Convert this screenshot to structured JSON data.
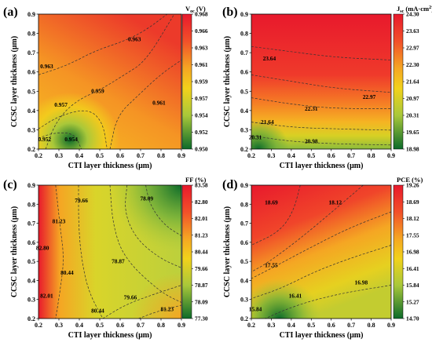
{
  "chart_data": [
    {
      "type": "heatmap",
      "panel_label": "(a)",
      "xlabel": "CTI layer thickness (μm)",
      "ylabel": "CCSC layer thickness (μm)",
      "x_ticks": [
        "0.2",
        "0.3",
        "0.4",
        "0.5",
        "0.6",
        "0.7",
        "0.8",
        "0.9"
      ],
      "y_ticks": [
        "0.2",
        "0.3",
        "0.4",
        "0.5",
        "0.6",
        "0.7",
        "0.8",
        "0.9"
      ],
      "xlim": [
        0.2,
        0.9
      ],
      "ylim": [
        0.2,
        0.9
      ],
      "colorbar": {
        "title": "V<sub>oc</sub> (V)",
        "title_main": "V",
        "title_sub": "oc",
        "title_rest": " (V)",
        "ticks": [
          "0.968",
          "0.966",
          "0.963",
          "0.961",
          "0.959",
          "0.957",
          "0.954",
          "0.952",
          "0.950"
        ],
        "range": [
          0.95,
          0.968
        ]
      },
      "contour_labels": [
        {
          "text": "0.963",
          "x": 0.67,
          "y": 0.76
        },
        {
          "text": "0.963",
          "x": 0.24,
          "y": 0.62
        },
        {
          "text": "0.959",
          "x": 0.49,
          "y": 0.49
        },
        {
          "text": "0.957",
          "x": 0.31,
          "y": 0.42
        },
        {
          "text": "0.961",
          "x": 0.79,
          "y": 0.43
        },
        {
          "text": "0.952",
          "x": 0.23,
          "y": 0.24
        },
        {
          "text": "0.954",
          "x": 0.36,
          "y": 0.24
        }
      ]
    },
    {
      "type": "heatmap",
      "panel_label": "(b)",
      "xlabel": "CTI layer thickness (μm)",
      "ylabel": "CCSC layer thickness (μm)",
      "x_ticks": [
        "0.2",
        "0.3",
        "0.4",
        "0.5",
        "0.6",
        "0.7",
        "0.8",
        "0.9"
      ],
      "y_ticks": [
        "0.2",
        "0.3",
        "0.4",
        "0.5",
        "0.6",
        "0.7",
        "0.8",
        "0.9"
      ],
      "xlim": [
        0.2,
        0.9
      ],
      "ylim": [
        0.2,
        0.9
      ],
      "colorbar": {
        "title_main": "J",
        "title_sub": "sc",
        "title_rest": " (mA·cm",
        "title_sup": "2",
        "title_end": ")",
        "ticks": [
          "24.30",
          "23.63",
          "22.97",
          "22.30",
          "21.64",
          "20.97",
          "20.31",
          "19.65",
          "18.98"
        ],
        "range": [
          18.98,
          24.3
        ]
      },
      "contour_labels": [
        {
          "text": "23.64",
          "x": 0.29,
          "y": 0.66
        },
        {
          "text": "22.97",
          "x": 0.79,
          "y": 0.46
        },
        {
          "text": "22.31",
          "x": 0.5,
          "y": 0.4
        },
        {
          "text": "21.64",
          "x": 0.28,
          "y": 0.33
        },
        {
          "text": "20.31",
          "x": 0.22,
          "y": 0.25
        },
        {
          "text": "20.98",
          "x": 0.5,
          "y": 0.23
        }
      ]
    },
    {
      "type": "heatmap",
      "panel_label": "(c)",
      "xlabel": "CTI layer thickness (μm)",
      "ylabel": "CCSC layer thickness (μm)",
      "x_ticks": [
        "0.2",
        "0.3",
        "0.4",
        "0.5",
        "0.6",
        "0.7",
        "0.8",
        "0.9"
      ],
      "y_ticks": [
        "0.2",
        "0.3",
        "0.4",
        "0.5",
        "0.6",
        "0.7",
        "0.8",
        "0.9"
      ],
      "xlim": [
        0.2,
        0.9
      ],
      "ylim": [
        0.2,
        0.9
      ],
      "colorbar": {
        "title_main": "FF (%)",
        "ticks": [
          "83.58",
          "82.80",
          "82.01",
          "81.23",
          "80.44",
          "79.66",
          "78.87",
          "78.09",
          "77.30"
        ],
        "range": [
          77.3,
          83.58
        ]
      },
      "contour_labels": [
        {
          "text": "79.66",
          "x": 0.41,
          "y": 0.81
        },
        {
          "text": "78.09",
          "x": 0.73,
          "y": 0.82
        },
        {
          "text": "81.23",
          "x": 0.3,
          "y": 0.7
        },
        {
          "text": "82.80",
          "x": 0.22,
          "y": 0.56
        },
        {
          "text": "78.87",
          "x": 0.59,
          "y": 0.49
        },
        {
          "text": "80.44",
          "x": 0.34,
          "y": 0.43
        },
        {
          "text": "82.01",
          "x": 0.24,
          "y": 0.31
        },
        {
          "text": "79.66",
          "x": 0.65,
          "y": 0.3
        },
        {
          "text": "80.44",
          "x": 0.49,
          "y": 0.23
        },
        {
          "text": "81.23",
          "x": 0.83,
          "y": 0.24
        }
      ]
    },
    {
      "type": "heatmap",
      "panel_label": "(d)",
      "xlabel": "CTI layer thickness (μm)",
      "ylabel": "CCSC layer thickness (μm)",
      "x_ticks": [
        "0.2",
        "0.3",
        "0.4",
        "0.5",
        "0.6",
        "0.7",
        "0.8",
        "0.9"
      ],
      "y_ticks": [
        "0.2",
        "0.3",
        "0.4",
        "0.5",
        "0.6",
        "0.7",
        "0.8",
        "0.9"
      ],
      "xlim": [
        0.2,
        0.9
      ],
      "ylim": [
        0.2,
        0.9
      ],
      "colorbar": {
        "title_main": "PCE (%)",
        "ticks": [
          "19.26",
          "18.69",
          "18.12",
          "17.55",
          "16.98",
          "16.41",
          "15.84",
          "15.27",
          "14.70"
        ],
        "range": [
          14.7,
          19.26
        ]
      },
      "contour_labels": [
        {
          "text": "18.69",
          "x": 0.3,
          "y": 0.8
        },
        {
          "text": "18.12",
          "x": 0.62,
          "y": 0.8
        },
        {
          "text": "17.55",
          "x": 0.3,
          "y": 0.47
        },
        {
          "text": "16.98",
          "x": 0.75,
          "y": 0.38
        },
        {
          "text": "16.41",
          "x": 0.42,
          "y": 0.31
        },
        {
          "text": "15.84",
          "x": 0.22,
          "y": 0.24
        }
      ]
    }
  ]
}
